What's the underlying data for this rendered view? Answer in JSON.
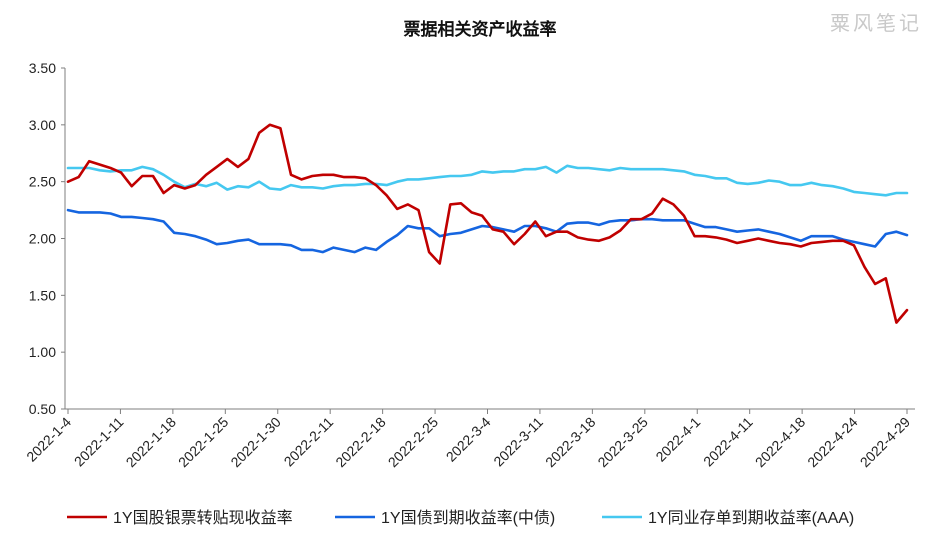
{
  "chart_data": {
    "type": "line",
    "title": "票据相关资产收益率",
    "watermark": "粟风笔记",
    "xlabel": "",
    "ylabel": "",
    "ylim": [
      0.5,
      3.5
    ],
    "yticks": [
      "0.50",
      "1.00",
      "1.50",
      "2.00",
      "2.50",
      "3.00",
      "3.50"
    ],
    "xtick_labels": [
      "2022-1-4",
      "2022-1-11",
      "2022-1-18",
      "2022-1-25",
      "2022-1-30",
      "2022-2-11",
      "2022-2-18",
      "2022-2-25",
      "2022-3-4",
      "2022-3-11",
      "2022-3-18",
      "2022-3-25",
      "2022-4-1",
      "2022-4-11",
      "2022-4-18",
      "2022-4-24",
      "2022-4-29"
    ],
    "legend_position": "bottom",
    "grid": false,
    "series": [
      {
        "name": "1Y国股银票转贴现收益率",
        "color": "#c00000",
        "values": [
          2.5,
          2.54,
          2.68,
          2.65,
          2.62,
          2.58,
          2.46,
          2.55,
          2.55,
          2.4,
          2.47,
          2.44,
          2.47,
          2.56,
          2.63,
          2.7,
          2.63,
          2.7,
          2.93,
          3.0,
          2.97,
          2.56,
          2.52,
          2.55,
          2.56,
          2.56,
          2.54,
          2.54,
          2.53,
          2.47,
          2.38,
          2.26,
          2.3,
          2.25,
          1.88,
          1.78,
          2.3,
          2.31,
          2.23,
          2.2,
          2.08,
          2.06,
          1.95,
          2.04,
          2.15,
          2.02,
          2.06,
          2.06,
          2.01,
          1.99,
          1.98,
          2.01,
          2.07,
          2.17,
          2.17,
          2.22,
          2.35,
          2.3,
          2.2,
          2.02,
          2.02,
          2.01,
          1.99,
          1.96,
          1.98,
          2.0,
          1.98,
          1.96,
          1.95,
          1.93,
          1.96,
          1.97,
          1.98,
          1.98,
          1.94,
          1.75,
          1.6,
          1.65,
          1.26,
          1.37
        ]
      },
      {
        "name": "1Y国债到期收益率(中债)",
        "color": "#1565e0",
        "values": [
          2.25,
          2.23,
          2.23,
          2.23,
          2.22,
          2.19,
          2.19,
          2.18,
          2.17,
          2.15,
          2.05,
          2.04,
          2.02,
          1.99,
          1.95,
          1.96,
          1.98,
          1.99,
          1.95,
          1.95,
          1.95,
          1.94,
          1.9,
          1.9,
          1.88,
          1.92,
          1.9,
          1.88,
          1.92,
          1.9,
          1.97,
          2.03,
          2.11,
          2.09,
          2.09,
          2.02,
          2.04,
          2.05,
          2.08,
          2.11,
          2.1,
          2.08,
          2.06,
          2.11,
          2.11,
          2.09,
          2.06,
          2.13,
          2.14,
          2.14,
          2.12,
          2.15,
          2.16,
          2.16,
          2.17,
          2.17,
          2.16,
          2.16,
          2.16,
          2.13,
          2.1,
          2.1,
          2.08,
          2.06,
          2.07,
          2.08,
          2.06,
          2.04,
          2.01,
          1.98,
          2.02,
          2.02,
          2.02,
          1.99,
          1.97,
          1.95,
          1.93,
          2.04,
          2.06,
          2.03
        ]
      },
      {
        "name": "1Y同业存单到期收益率(AAA)",
        "color": "#45c8f0",
        "values": [
          2.62,
          2.62,
          2.62,
          2.6,
          2.59,
          2.6,
          2.6,
          2.63,
          2.61,
          2.56,
          2.5,
          2.45,
          2.48,
          2.46,
          2.49,
          2.43,
          2.46,
          2.45,
          2.5,
          2.44,
          2.43,
          2.47,
          2.45,
          2.45,
          2.44,
          2.46,
          2.47,
          2.47,
          2.48,
          2.48,
          2.47,
          2.5,
          2.52,
          2.52,
          2.53,
          2.54,
          2.55,
          2.55,
          2.56,
          2.59,
          2.58,
          2.59,
          2.59,
          2.61,
          2.61,
          2.63,
          2.58,
          2.64,
          2.62,
          2.62,
          2.61,
          2.6,
          2.62,
          2.61,
          2.61,
          2.61,
          2.61,
          2.6,
          2.59,
          2.56,
          2.55,
          2.53,
          2.53,
          2.49,
          2.48,
          2.49,
          2.51,
          2.5,
          2.47,
          2.47,
          2.49,
          2.47,
          2.46,
          2.44,
          2.41,
          2.4,
          2.39,
          2.38,
          2.4,
          2.4
        ]
      }
    ]
  }
}
